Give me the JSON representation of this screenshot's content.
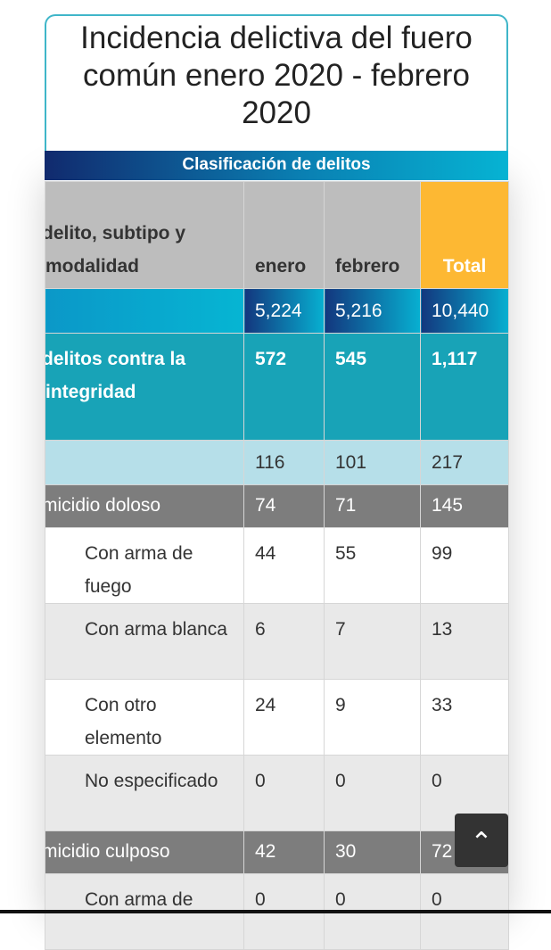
{
  "title": "Incidencia delictiva del fuero común enero 2020 - febrero 2020",
  "classification": "Clasificación de delitos",
  "headers": {
    "type": "delito, subtipo y modalidad",
    "enero": "enero",
    "febrero": "febrero",
    "total": "Total"
  },
  "rows": [
    {
      "label": "",
      "enero": "5,224",
      "febrero": "5,216",
      "total": "10,440",
      "style": "totrow"
    },
    {
      "label": "delitos contra la integridad",
      "enero": "572",
      "febrero": "545",
      "total": "1,117",
      "style": "integ"
    },
    {
      "label": "",
      "enero": "116",
      "febrero": "101",
      "total": "217",
      "style": "lb"
    },
    {
      "label": "micidio doloso",
      "enero": "74",
      "febrero": "71",
      "total": "145",
      "style": "hom"
    },
    {
      "label": "Con arma de fuego",
      "enero": "44",
      "febrero": "55",
      "total": "99",
      "style": "w"
    },
    {
      "label": "Con arma blanca",
      "enero": "6",
      "febrero": "7",
      "total": "13",
      "style": "g"
    },
    {
      "label": "Con otro elemento",
      "enero": "24",
      "febrero": "9",
      "total": "33",
      "style": "w"
    },
    {
      "label": "No especificado",
      "enero": "0",
      "febrero": "0",
      "total": "0",
      "style": "g"
    },
    {
      "label": "micidio culposo",
      "enero": "42",
      "febrero": "30",
      "total": "72",
      "style": "hom"
    },
    {
      "label": "Con arma de",
      "enero": "0",
      "febrero": "0",
      "total": "0",
      "style": "g"
    }
  ],
  "scroll_top_icon": "chevron-up-icon"
}
